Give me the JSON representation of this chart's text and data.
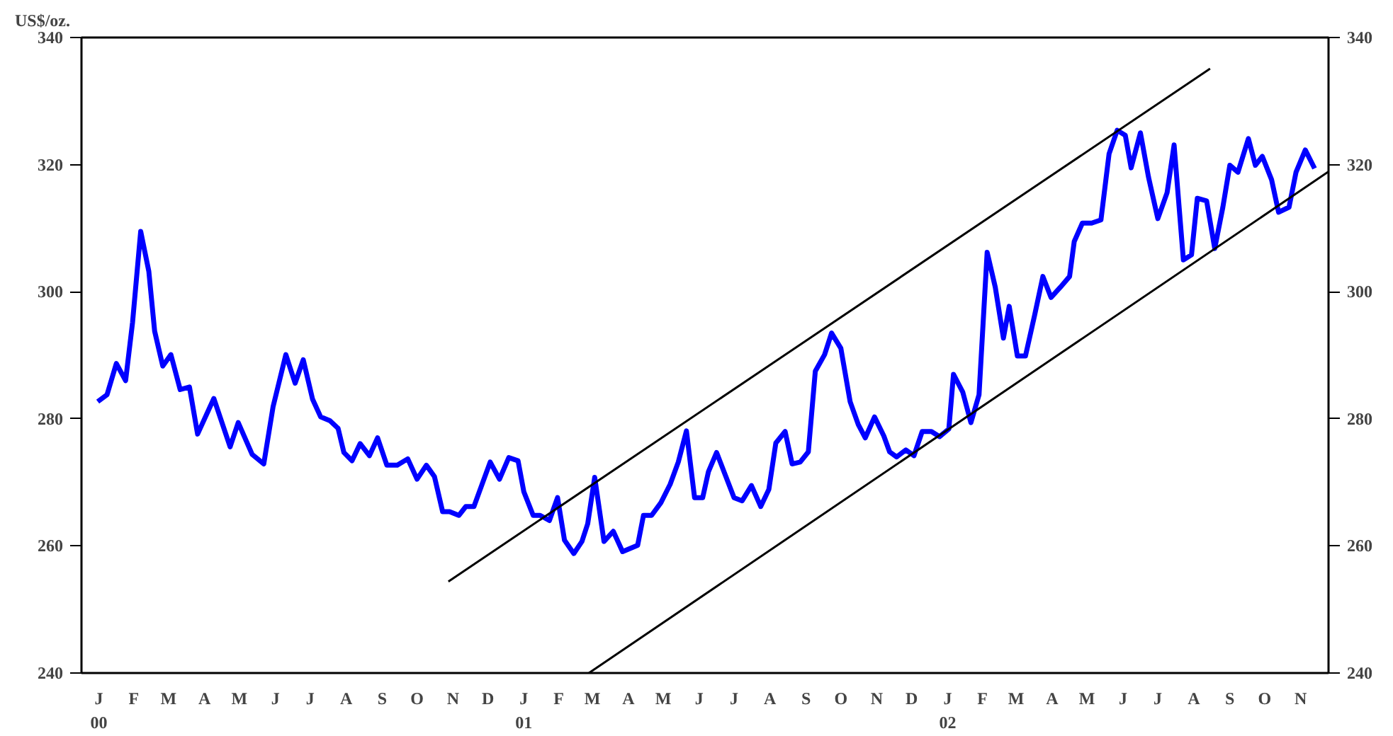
{
  "chart_data": {
    "type": "line",
    "ylabel": "US$/oz.",
    "xlim": [
      "2000-01-01",
      "2002-12-10"
    ],
    "ylim": [
      240,
      340
    ],
    "yticks": [
      240,
      260,
      280,
      300,
      320,
      340
    ],
    "y2lim": [
      240,
      340
    ],
    "y2ticks": [
      240,
      260,
      280,
      300,
      320,
      340
    ],
    "xticks": [
      {
        "value": "2000-01-16",
        "label": "J\n00"
      },
      {
        "value": "2000-02-15",
        "label": "F"
      },
      {
        "value": "2000-03-16",
        "label": "M"
      },
      {
        "value": "2000-04-16",
        "label": "A"
      },
      {
        "value": "2000-05-16",
        "label": "M"
      },
      {
        "value": "2000-06-16",
        "label": "J"
      },
      {
        "value": "2000-07-16",
        "label": "J"
      },
      {
        "value": "2000-08-16",
        "label": "A"
      },
      {
        "value": "2000-09-16",
        "label": "S"
      },
      {
        "value": "2000-10-16",
        "label": "O"
      },
      {
        "value": "2000-11-16",
        "label": "N"
      },
      {
        "value": "2000-12-16",
        "label": "D"
      },
      {
        "value": "2001-01-16",
        "label": "J\n01"
      },
      {
        "value": "2001-02-15",
        "label": "F"
      },
      {
        "value": "2001-03-16",
        "label": "M"
      },
      {
        "value": "2001-04-16",
        "label": "A"
      },
      {
        "value": "2001-05-16",
        "label": "M"
      },
      {
        "value": "2001-06-16",
        "label": "J"
      },
      {
        "value": "2001-07-16",
        "label": "J"
      },
      {
        "value": "2001-08-16",
        "label": "A"
      },
      {
        "value": "2001-09-16",
        "label": "S"
      },
      {
        "value": "2001-10-16",
        "label": "O"
      },
      {
        "value": "2001-11-16",
        "label": "N"
      },
      {
        "value": "2001-12-16",
        "label": "D"
      },
      {
        "value": "2002-01-16",
        "label": "J\n02"
      },
      {
        "value": "2002-02-15",
        "label": "F"
      },
      {
        "value": "2002-03-16",
        "label": "M"
      },
      {
        "value": "2002-04-16",
        "label": "A"
      },
      {
        "value": "2002-05-16",
        "label": "M"
      },
      {
        "value": "2002-06-16",
        "label": "J"
      },
      {
        "value": "2002-07-16",
        "label": "J"
      },
      {
        "value": "2002-08-16",
        "label": "A"
      },
      {
        "value": "2002-09-16",
        "label": "S"
      },
      {
        "value": "2002-10-16",
        "label": "O"
      },
      {
        "value": "2002-11-16",
        "label": "N"
      }
    ],
    "grid": false,
    "line_style": "solid",
    "series": [
      {
        "color": "#0000ff",
        "x": [
          "2000-01-15",
          "2000-01-23",
          "2000-01-31",
          "2000-02-08",
          "2000-02-14",
          "2000-02-21",
          "2000-02-28",
          "2000-03-04",
          "2000-03-11",
          "2000-03-18",
          "2000-03-26",
          "2000-04-03",
          "2000-04-10",
          "2000-04-24",
          "2000-05-08",
          "2000-05-15",
          "2000-05-27",
          "2000-06-06",
          "2000-06-14",
          "2000-06-25",
          "2000-07-03",
          "2000-07-10",
          "2000-07-18",
          "2000-07-25",
          "2000-08-02",
          "2000-08-09",
          "2000-08-14",
          "2000-08-21",
          "2000-08-28",
          "2000-09-05",
          "2000-09-12",
          "2000-09-20",
          "2000-09-29",
          "2000-10-08",
          "2000-10-16",
          "2000-10-24",
          "2000-10-31",
          "2000-11-07",
          "2000-11-13",
          "2000-11-21",
          "2000-11-27",
          "2000-12-04",
          "2000-12-18",
          "2000-12-26",
          "2001-01-03",
          "2001-01-11",
          "2001-01-16",
          "2001-01-24",
          "2001-01-30",
          "2001-02-07",
          "2001-02-14",
          "2001-02-20",
          "2001-02-28",
          "2001-03-07",
          "2001-03-12",
          "2001-03-18",
          "2001-03-26",
          "2001-04-03",
          "2001-04-11",
          "2001-04-24",
          "2001-04-29",
          "2001-05-06",
          "2001-05-14",
          "2001-05-22",
          "2001-05-29",
          "2001-06-05",
          "2001-06-12",
          "2001-06-19",
          "2001-06-24",
          "2001-07-01",
          "2001-07-09",
          "2001-07-16",
          "2001-07-23",
          "2001-07-31",
          "2001-08-08",
          "2001-08-15",
          "2001-08-21",
          "2001-08-29",
          "2001-09-04",
          "2001-09-11",
          "2001-09-18",
          "2001-09-24",
          "2001-10-02",
          "2001-10-08",
          "2001-10-16",
          "2001-10-24",
          "2001-10-31",
          "2001-11-06",
          "2001-11-14",
          "2001-11-22",
          "2001-11-27",
          "2001-12-03",
          "2001-12-11",
          "2001-12-18",
          "2001-12-25",
          "2002-01-02",
          "2002-01-09",
          "2002-01-17",
          "2002-01-21",
          "2002-01-29",
          "2002-02-05",
          "2002-02-12",
          "2002-02-19",
          "2002-02-26",
          "2002-03-05",
          "2002-03-10",
          "2002-03-17",
          "2002-03-24",
          "2002-04-01",
          "2002-04-08",
          "2002-04-15",
          "2002-04-23",
          "2002-05-01",
          "2002-05-05",
          "2002-05-12",
          "2002-05-20",
          "2002-05-28",
          "2002-06-04",
          "2002-06-11",
          "2002-06-18",
          "2002-06-23",
          "2002-07-01",
          "2002-07-08",
          "2002-07-16",
          "2002-07-24",
          "2002-07-30",
          "2002-08-07",
          "2002-08-14",
          "2002-08-19",
          "2002-08-27",
          "2002-09-03",
          "2002-09-10",
          "2002-09-16",
          "2002-09-23",
          "2002-10-02",
          "2002-10-08",
          "2002-10-14",
          "2002-10-22",
          "2002-10-28",
          "2002-11-06",
          "2002-11-12",
          "2002-11-20",
          "2002-11-28"
        ],
        "values": [
          282.7,
          283.8,
          288.7,
          286,
          295.2,
          309.5,
          303.2,
          293.8,
          288.3,
          290.1,
          284.6,
          285,
          277.6,
          283.2,
          275.6,
          279.4,
          274.4,
          272.9,
          281.9,
          290.1,
          285.6,
          289.3,
          283.1,
          280.3,
          279.7,
          278.5,
          274.7,
          273.4,
          276.1,
          274.2,
          277,
          272.7,
          272.7,
          273.7,
          270.5,
          272.7,
          270.9,
          265.4,
          265.4,
          264.8,
          266.2,
          266.2,
          273.2,
          270.5,
          273.9,
          273.4,
          268.5,
          264.8,
          264.8,
          264,
          267.6,
          260.9,
          258.8,
          260.7,
          263.5,
          270.8,
          260.7,
          262.3,
          259.1,
          260.1,
          264.8,
          264.8,
          266.8,
          269.7,
          273.2,
          278.1,
          267.6,
          267.6,
          271.7,
          274.7,
          270.9,
          267.6,
          267.1,
          269.5,
          266.2,
          268.9,
          276.2,
          278,
          272.9,
          273.2,
          274.8,
          287.5,
          290.1,
          293.5,
          291.1,
          282.7,
          279.1,
          277,
          280.3,
          277.3,
          274.8,
          274,
          275.1,
          274.2,
          278,
          278,
          277.2,
          278.4,
          287,
          284.2,
          279.4,
          283.8,
          306.2,
          300.7,
          292.7,
          297.7,
          289.9,
          289.9,
          296.4,
          302.4,
          299.1,
          300.7,
          302.4,
          307.9,
          310.8,
          310.8,
          311.3,
          321.7,
          325.4,
          324.6,
          319.5,
          325,
          318,
          311.5,
          315.6,
          323.1,
          305,
          305.8,
          314.7,
          314.3,
          306.8,
          313.3,
          319.9,
          318.8,
          324.1,
          319.9,
          321.3,
          317.6,
          312.5,
          313.3,
          318.8,
          322.3,
          319.4
        ]
      },
      {
        "type": "line",
        "color": "#000000",
        "x": [
          "2000-11-12",
          "2002-08-30"
        ],
        "values": [
          254.4,
          335.1
        ]
      },
      {
        "type": "line",
        "color": "#000000",
        "x": [
          "2001-03-13",
          "2002-12-10"
        ],
        "values": [
          240,
          318.9
        ]
      }
    ]
  }
}
